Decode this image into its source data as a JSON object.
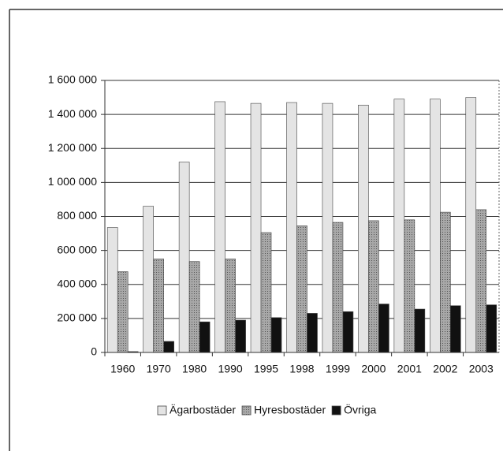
{
  "chart_data": {
    "type": "bar",
    "categories": [
      "1960",
      "1970",
      "1980",
      "1990",
      "1995",
      "1998",
      "1999",
      "2000",
      "2001",
      "2002",
      "2003"
    ],
    "series": [
      {
        "name": "Ägarbostäder",
        "color": "#e4e4e4",
        "values": [
          735000,
          860000,
          1120000,
          1475000,
          1465000,
          1470000,
          1465000,
          1455000,
          1490000,
          1490000,
          1500000
        ]
      },
      {
        "name": "Hyresbostäder",
        "color": "#9a9a9a",
        "values": [
          475000,
          550000,
          535000,
          550000,
          705000,
          745000,
          765000,
          775000,
          780000,
          825000,
          840000
        ]
      },
      {
        "name": "Övriga",
        "color": "#111111",
        "values": [
          5000,
          65000,
          180000,
          190000,
          205000,
          230000,
          240000,
          285000,
          255000,
          275000,
          280000
        ]
      }
    ],
    "ylim": [
      0,
      1600000
    ],
    "yticks": [
      0,
      {
        "value": 200000,
        "label": "200 000"
      },
      {
        "value": 400000,
        "label": "400 000"
      },
      {
        "value": 600000,
        "label": "600 000"
      },
      {
        "value": 800000,
        "label": "800 000"
      },
      {
        "value": 1000000,
        "label": "1 000 000"
      },
      {
        "value": 1200000,
        "label": "1 200 000"
      },
      {
        "value": 1400000,
        "label": "1 400 000"
      },
      {
        "value": 1600000,
        "label": "1 600 000"
      }
    ],
    "grid": true,
    "legend": "bottom"
  }
}
